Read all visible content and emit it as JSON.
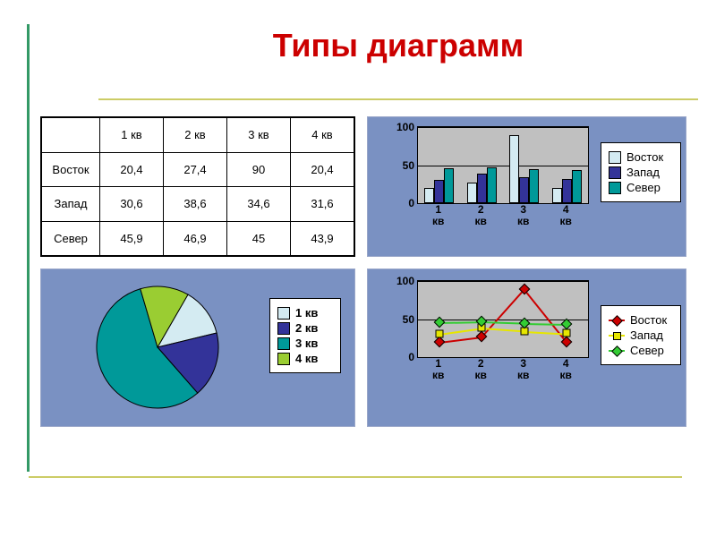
{
  "title": "Типы диаграмм",
  "title_fontsize": 36,
  "title_color": "#cc0000",
  "rule_color_h": "#cccc66",
  "rule_color_v": "#339966",
  "panel_bg": "#7a91c2",
  "plot_bg": "#c0c0c0",
  "table": {
    "columns": [
      "",
      "1 кв",
      "2 кв",
      "3 кв",
      "4 кв"
    ],
    "rows": [
      [
        "Восток",
        "20,4",
        "27,4",
        "90",
        "20,4"
      ],
      [
        "Запад",
        "30,6",
        "38,6",
        "34,6",
        "31,6"
      ],
      [
        "Север",
        "45,9",
        "46,9",
        "45",
        "43,9"
      ]
    ]
  },
  "bar_chart": {
    "type": "bar",
    "categories": [
      "1 кв",
      "2 кв",
      "3 кв",
      "4 кв"
    ],
    "series": [
      {
        "name": "Восток",
        "color": "#d4ebf2",
        "values": [
          20.4,
          27.4,
          90,
          20.4
        ]
      },
      {
        "name": "Запад",
        "color": "#333399",
        "values": [
          30.6,
          38.6,
          34.6,
          31.6
        ]
      },
      {
        "name": "Север",
        "color": "#009999",
        "values": [
          45.9,
          46.9,
          45,
          43.9
        ]
      }
    ],
    "ylim": [
      0,
      100
    ],
    "yticks": [
      0,
      50,
      100
    ],
    "grid_color": "#000000",
    "bar_group_width": 0.7
  },
  "pie_chart": {
    "type": "pie",
    "slices": [
      {
        "name": "1 кв",
        "value": 20.4,
        "color": "#d4ebf2"
      },
      {
        "name": "2 кв",
        "value": 27.4,
        "color": "#333399"
      },
      {
        "name": "3 кв",
        "value": 90,
        "color": "#009999"
      },
      {
        "name": "4 кв",
        "value": 20.4,
        "color": "#9acd32"
      }
    ],
    "outline": "#000000",
    "start_angle_deg": -60
  },
  "line_chart": {
    "type": "line",
    "categories": [
      "1 кв",
      "2 кв",
      "3 кв",
      "4 кв"
    ],
    "series": [
      {
        "name": "Восток",
        "color": "#cc0000",
        "marker": "diamond",
        "values": [
          20.4,
          27.4,
          90,
          20.4
        ]
      },
      {
        "name": "Запад",
        "color": "#e6e600",
        "marker": "square",
        "values": [
          30.6,
          38.6,
          34.6,
          31.6
        ]
      },
      {
        "name": "Север",
        "color": "#33cc33",
        "marker": "diamond",
        "values": [
          45.9,
          46.9,
          45,
          43.9
        ]
      }
    ],
    "ylim": [
      0,
      100
    ],
    "yticks": [
      0,
      50,
      100
    ],
    "grid_color": "#000000"
  }
}
